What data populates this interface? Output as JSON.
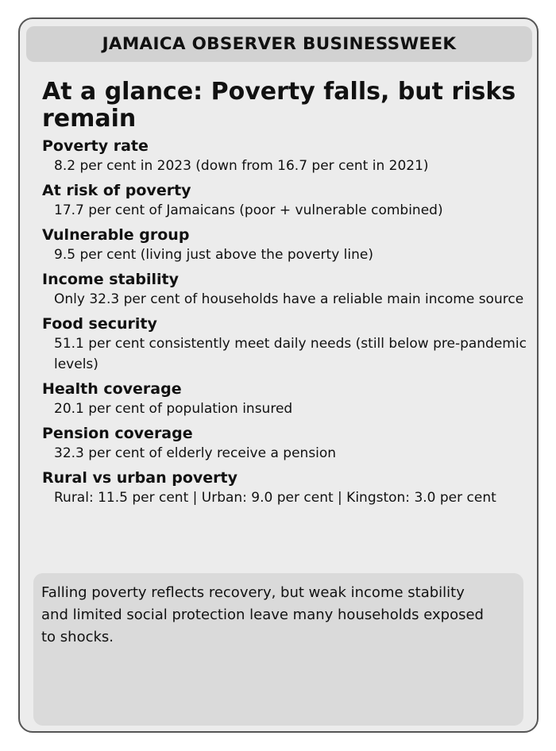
{
  "masthead": {
    "title": "JAMAICA OBSERVER BUSINESSWEEK"
  },
  "headline": "At a glance: Poverty falls, but risks remain",
  "items": [
    {
      "label": "Poverty rate",
      "value": "8.2 per cent in 2023 (down from 16.7 per cent in 2021)"
    },
    {
      "label": "At risk of poverty",
      "value": "17.7 per cent of Jamaicans (poor + vulnerable combined)"
    },
    {
      "label": "Vulnerable group",
      "value": "9.5 per cent (living just above the poverty line)"
    },
    {
      "label": "Income stability",
      "value": "Only 32.3 per cent of households have a reliable main income source"
    },
    {
      "label": "Food security",
      "value": "51.1 per cent consistently meet daily needs (still below pre-pandemic levels)"
    },
    {
      "label": "Health coverage",
      "value": "20.1 per cent of population insured"
    },
    {
      "label": "Pension coverage",
      "value": "32.3 per cent of elderly receive a pension"
    },
    {
      "label": "Rural vs urban poverty",
      "value": "Rural: 11.5 per cent | Urban: 9.0 per cent | Kingston: 3.0 per cent"
    }
  ],
  "summary": {
    "text": "Falling poverty reflects recovery, but weak income stability and limited social protection leave many households exposed to shocks."
  },
  "colors": {
    "card_background": "#ececec",
    "card_border": "#555555",
    "masthead_background": "#d2d2d2",
    "summary_background": "#dadada",
    "text": "#111111"
  }
}
